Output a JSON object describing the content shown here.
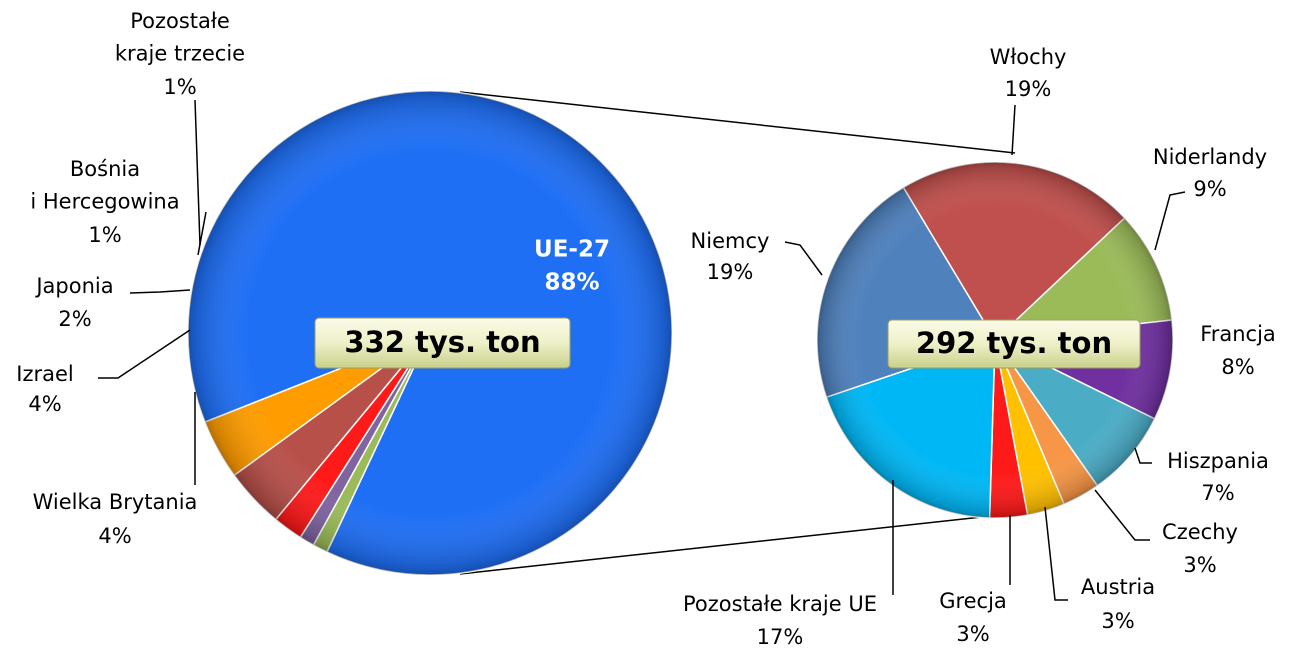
{
  "chart_data": [
    {
      "type": "pie",
      "categories": [
        "UE-27",
        "Pozostałe\nkraje trzecie",
        "Bośnia\ni Hercegowina",
        "Japonia",
        "Izrael",
        "Wielka Brytania"
      ],
      "values": [
        88,
        1,
        1,
        2,
        4,
        4
      ],
      "value_labels": [
        "88%",
        "1%",
        "1%",
        "2%",
        "4%",
        "4%"
      ],
      "colors": [
        "#1f6ff5",
        "#9bbb59",
        "#8064a2",
        "#ff1a1a",
        "#b8504a",
        "#ff9c00"
      ],
      "annotation": "332 tys. ton"
    },
    {
      "type": "pie",
      "categories": [
        "Włochy",
        "Niderlandy",
        "Francja",
        "Hiszpania",
        "Czechy",
        "Austria",
        "Grecja",
        "Pozostałe kraje UE",
        "Niemcy"
      ],
      "values": [
        19,
        9,
        8,
        7,
        3,
        3,
        3,
        17,
        19
      ],
      "value_labels": [
        "19%",
        "9%",
        "8%",
        "7%",
        "3%",
        "3%",
        "3%",
        "17%",
        "19%"
      ],
      "colors": [
        "#c0504d",
        "#9bbb59",
        "#7030a0",
        "#4bacc6",
        "#f79646",
        "#ffc000",
        "#ff1a1a",
        "#00b7f5",
        "#4f81bd"
      ],
      "annotation": "292 tys. ton"
    }
  ]
}
